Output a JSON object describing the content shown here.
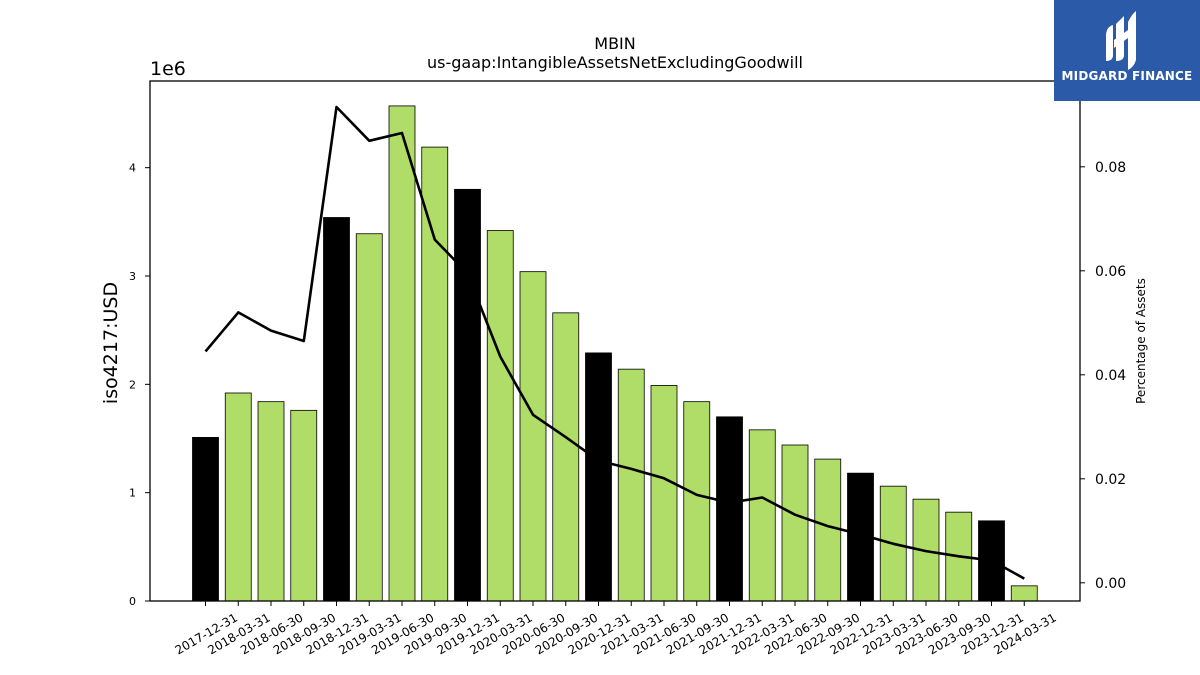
{
  "chart_data": {
    "type": "bar",
    "title": "MBIN",
    "subtitle": "us-gaap:IntangibleAssetsNetExcludingGoodwill",
    "ylabel": "iso4217:USD",
    "y_multiplier": "1e6",
    "y2label": "Percentage of Assets",
    "ylim": [
      0,
      4800000
    ],
    "y2lim": [
      -0.0035,
      0.0965
    ],
    "y_ticks": [
      0,
      1,
      2,
      3,
      4
    ],
    "y2_ticks": [
      "0.00",
      "0.02",
      "0.04",
      "0.06",
      "0.08"
    ],
    "grid": false,
    "categories": [
      "2017-12-31",
      "2018-03-31",
      "2018-06-30",
      "2018-09-30",
      "2018-12-31",
      "2019-03-31",
      "2019-06-30",
      "2019-09-30",
      "2019-12-31",
      "2020-03-31",
      "2020-06-30",
      "2020-09-30",
      "2020-12-31",
      "2021-03-31",
      "2021-06-30",
      "2021-09-30",
      "2021-12-31",
      "2022-03-31",
      "2022-06-30",
      "2022-09-30",
      "2022-12-31",
      "2023-03-31",
      "2023-06-30",
      "2023-09-30",
      "2023-12-31",
      "2024-03-31"
    ],
    "values": [
      1510000,
      1920000,
      1840000,
      1760000,
      3540000,
      3390000,
      4570000,
      4190000,
      3800000,
      3420000,
      3040000,
      2660000,
      2290000,
      2140000,
      1990000,
      1840000,
      1700000,
      1580000,
      1440000,
      1310000,
      1180000,
      1060000,
      940000,
      820000,
      740000,
      140000
    ],
    "annual_flags": [
      true,
      false,
      false,
      false,
      true,
      false,
      false,
      false,
      true,
      false,
      false,
      false,
      true,
      false,
      false,
      false,
      true,
      false,
      false,
      false,
      true,
      false,
      false,
      false,
      true,
      false
    ],
    "pct_of_assets": [
      0.0445,
      0.052,
      0.0485,
      0.0465,
      0.0915,
      0.085,
      0.0865,
      0.066,
      0.0595,
      0.0435,
      0.0323,
      0.028,
      0.0235,
      0.0219,
      0.0201,
      0.0169,
      0.0154,
      0.0164,
      0.0131,
      0.0109,
      0.0093,
      0.0075,
      0.0061,
      0.0051,
      0.0043,
      0.0008
    ],
    "colors": {
      "quarter_bar": "#b0dc68",
      "annual_bar": "#000000",
      "line": "#000000"
    }
  },
  "logo": {
    "text": "MIDGARD FINANCE",
    "bg": "#2b5aa8"
  }
}
